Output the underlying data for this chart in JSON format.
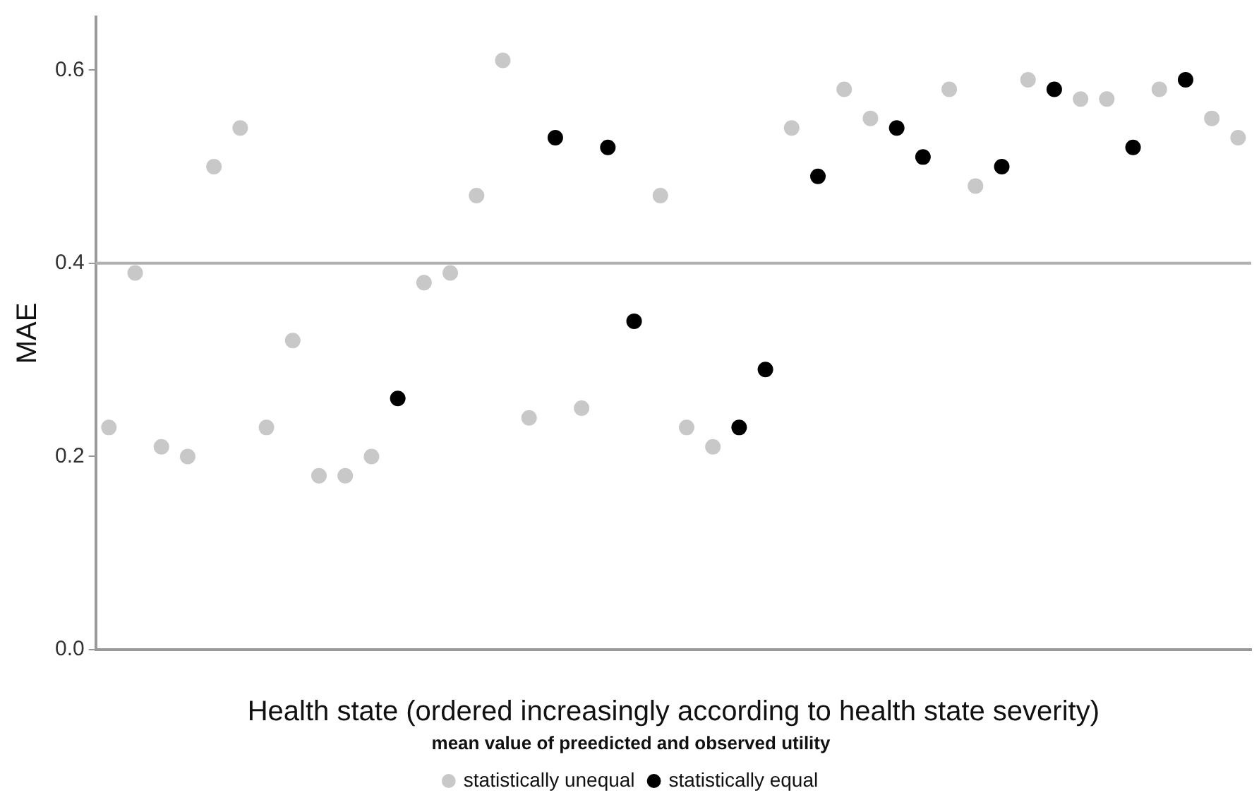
{
  "chart_data": {
    "type": "scatter",
    "xlabel": "Health state (ordered increasingly according to health state severity)",
    "ylabel": "MAE",
    "legend_title": "mean value of preedicted and observed utility",
    "legend": "bottom",
    "grid": false,
    "marker": "circle",
    "categories": [
      null,
      null,
      null,
      null,
      null,
      null,
      null,
      null,
      null,
      null,
      null,
      null,
      null,
      null,
      null,
      null,
      null,
      null,
      null,
      null,
      null,
      null,
      null,
      null,
      null,
      null,
      null,
      null,
      null,
      null,
      null,
      null,
      null,
      null,
      null,
      null,
      null,
      null,
      null,
      null,
      null,
      null,
      null,
      null
    ],
    "ylim": [
      0,
      0.655
    ],
    "yticks": [
      {
        "value": 0,
        "label": "0.0"
      },
      0.2,
      0.4,
      0.6
    ],
    "ref_lines": [
      {
        "axis": "y",
        "value": 0.4,
        "color": "#b0b0b0"
      }
    ],
    "series": [
      {
        "name": "statistically unequal",
        "color": "#c8c8c8",
        "values": [
          0.23,
          0.39,
          0.21,
          0.2,
          0.5,
          0.54,
          0.23,
          0.32,
          0.18,
          0.18,
          0.2,
          null,
          0.38,
          0.39,
          0.47,
          0.61,
          0.24,
          null,
          0.25,
          null,
          null,
          0.47,
          0.23,
          0.21,
          null,
          null,
          0.54,
          null,
          0.58,
          0.55,
          null,
          null,
          0.58,
          0.48,
          null,
          0.59,
          null,
          0.57,
          0.57,
          null,
          0.58,
          null,
          0.55,
          0.53
        ]
      },
      {
        "name": "statistically equal",
        "color": "#000000",
        "values": [
          null,
          null,
          null,
          null,
          null,
          null,
          null,
          null,
          null,
          null,
          null,
          0.26,
          null,
          null,
          null,
          null,
          null,
          0.53,
          null,
          0.52,
          0.34,
          null,
          null,
          null,
          0.23,
          0.29,
          null,
          0.49,
          null,
          null,
          0.54,
          0.51,
          null,
          null,
          0.5,
          null,
          0.58,
          null,
          null,
          0.52,
          null,
          0.59,
          null,
          null
        ]
      }
    ]
  }
}
